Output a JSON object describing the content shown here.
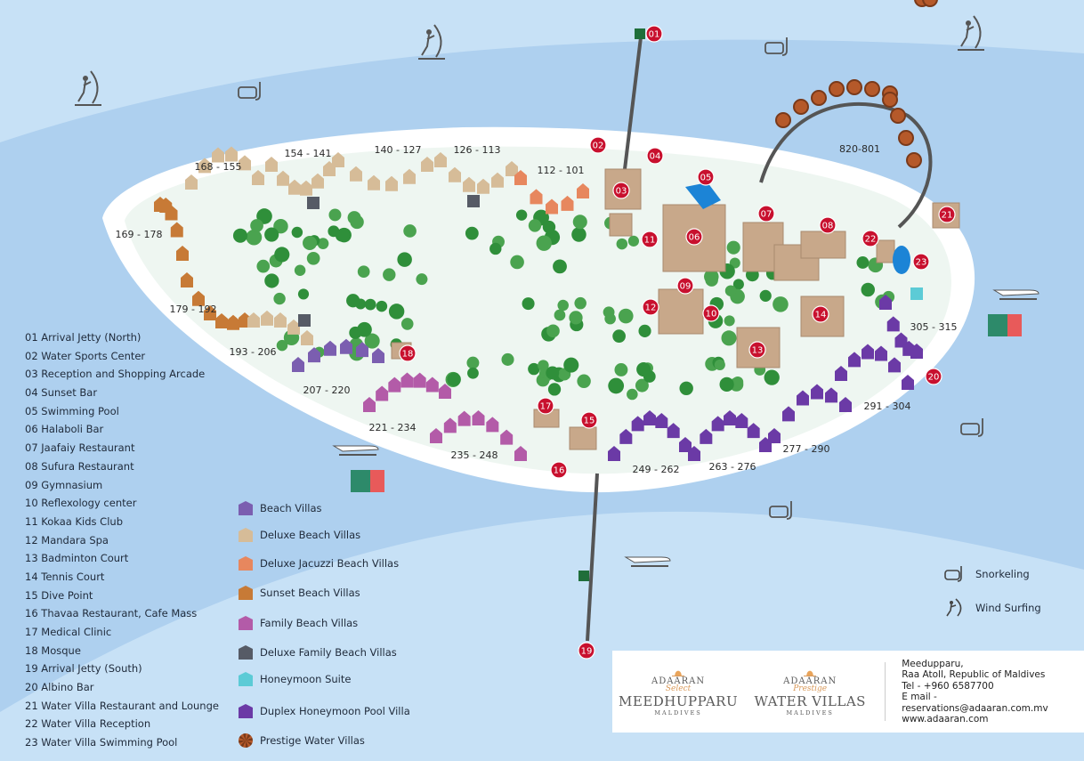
{
  "colors": {
    "sea_light": "#c7e1f6",
    "sea_band": "#aed0ef",
    "island": "#eef6f1",
    "beach": "#ffffff",
    "marker": "#c8102e",
    "tree": "#2f8f3a"
  },
  "markers": [
    "01",
    "02",
    "03",
    "04",
    "05",
    "06",
    "07",
    "08",
    "09",
    "10",
    "11",
    "12",
    "13",
    "14",
    "15",
    "16",
    "17",
    "18",
    "19",
    "20",
    "21",
    "22",
    "23"
  ],
  "villa_ranges": [
    "168 - 155",
    "154 - 141",
    "140 - 127",
    "126 - 113",
    "112 - 101",
    "169 - 178",
    "179 - 192",
    "193 - 206",
    "207 - 220",
    "221 - 234",
    "235 - 248",
    "249 - 262",
    "263 - 276",
    "277 - 290",
    "291 - 304",
    "305 - 315",
    "820-801"
  ],
  "poi_list": [
    "01 Arrival Jetty (North)",
    "02 Water Sports Center",
    "03 Reception and Shopping Arcade",
    "04 Sunset Bar",
    "05 Swimming Pool",
    "06 Halaboli Bar",
    "07 Jaafaiy Restaurant",
    "08 Sufura Restaurant",
    "09 Gymnasium",
    "10 Reflexology center",
    "11 Kokaa Kids Club",
    "12 Mandara Spa",
    "13 Badminton Court",
    "14 Tennis Court",
    "15 Dive Point",
    "16 Thavaa Restaurant, Cafe Mass",
    "17 Medical Clinic",
    "18 Mosque",
    "19 Arrival Jetty (South)",
    "20 Albino Bar",
    "21 Water Villa Restaurant and Lounge",
    "22 Water Villa Reception",
    "23 Water Villa Swimming Pool"
  ],
  "villa_types": [
    {
      "label": "Beach Villas",
      "color": "#7b5eb0"
    },
    {
      "label": "Deluxe Beach Villas",
      "color": "#d6bc98"
    },
    {
      "label": "Deluxe Jacuzzi Beach Villas",
      "color": "#e7875e"
    },
    {
      "label": "Sunset Beach Villas",
      "color": "#c77a36"
    },
    {
      "label": "Family Beach Villas",
      "color": "#b35ba8"
    },
    {
      "label": "Deluxe Family Beach Villas",
      "color": "#565b66"
    },
    {
      "label": "Honeymoon Suite",
      "color": "#5ccbd6"
    },
    {
      "label": "Duplex Honeymoon Pool Villa",
      "color": "#6b3aa6"
    },
    {
      "label": "Prestige Water Villas",
      "color": "#b5592a"
    }
  ],
  "activities": [
    {
      "label": "Snorkeling",
      "icon": "snorkel-mask-icon"
    },
    {
      "label": "Wind Surfing",
      "icon": "windsurfer-icon"
    }
  ],
  "footer": {
    "logo1": {
      "brand": "ADAARAN",
      "sub": "Select",
      "name": "MEEDHUPPARU",
      "country": "MALDIVES"
    },
    "logo2": {
      "brand": "ADAARAN",
      "sub": "Prestige",
      "name": "WATER VILLAS",
      "country": "MALDIVES"
    },
    "contact": [
      "Meedupparu,",
      "Raa Atoll, Republic of Maldives",
      "Tel - +960 6587700",
      "E mail - reservations@adaaran.com.mv",
      "www.adaaran.com"
    ]
  }
}
